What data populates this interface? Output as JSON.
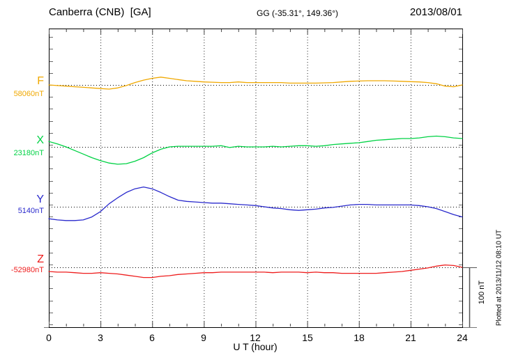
{
  "header": {
    "station": "Canberra (CNB)  [GA]",
    "coordinates": "GG (-35.31°, 149.36°)",
    "date": "2013/08/01"
  },
  "axes": {
    "x_label": "U T (hour)",
    "x_tick_labels": [
      "0",
      "3",
      "6",
      "9",
      "12",
      "15",
      "18",
      "21",
      "24"
    ]
  },
  "scale_bar": {
    "label": "100 nT"
  },
  "footer_note": "Plotted at 2013/11/12 08:10 UT",
  "chart_data": {
    "type": "line",
    "title": "Canberra (CNB) [GA] magnetogram for 2013/08/01",
    "xlabel": "U T (hour)",
    "x_range": [
      0,
      24
    ],
    "x_ticks": [
      0,
      3,
      6,
      9,
      12,
      15,
      18,
      21,
      24
    ],
    "x_minor_tick_step_hours": 1,
    "y_tick_step_nT": 20,
    "scale_bar_nT": 100,
    "x_step_hours": 0.5,
    "grid": "dotted vertical lines every 3 h; dotted horizontal line at each series baseline",
    "legend_position": "left",
    "series": [
      {
        "name": "F",
        "baseline_label": "58060nT",
        "baseline_nT": 58060,
        "color": "#f0a800",
        "offsets_nT": [
          0,
          -1,
          -2,
          -3,
          -4,
          -5,
          -6,
          -7,
          -5,
          -1,
          4,
          8,
          11,
          13,
          11,
          9,
          7,
          6,
          5,
          4.5,
          4,
          4,
          5,
          4,
          4,
          4,
          4,
          4,
          3,
          3,
          3,
          3,
          3.5,
          4,
          5,
          6,
          6.5,
          7,
          7,
          7,
          6.5,
          6,
          5.5,
          5,
          4,
          2,
          -2,
          -3,
          0
        ]
      },
      {
        "name": "X",
        "baseline_label": "23180nT",
        "baseline_nT": 23180,
        "color": "#00d244",
        "offsets_nT": [
          9,
          5,
          0,
          -6,
          -12,
          -18,
          -23,
          -27,
          -29,
          -28,
          -24,
          -18,
          -10,
          -4,
          0,
          1,
          1,
          1,
          1,
          1,
          2,
          -1,
          1,
          0,
          0,
          0,
          1,
          0,
          1,
          2,
          2,
          1,
          2,
          4,
          5,
          6,
          7,
          9,
          11,
          12,
          13,
          14,
          14,
          15,
          17,
          18,
          17,
          15,
          14
        ]
      },
      {
        "name": "Y",
        "baseline_label": "5140nT",
        "baseline_nT": 5140,
        "color": "#2929cc",
        "offsets_nT": [
          -20,
          -22,
          -23,
          -23,
          -22,
          -17,
          -8,
          5,
          15,
          24,
          30,
          33,
          30,
          24,
          17,
          11,
          9,
          8,
          7,
          6,
          6,
          5,
          4,
          3,
          2,
          0,
          -2,
          -3,
          -5,
          -6,
          -5,
          -4,
          -2,
          -1,
          1,
          3,
          4,
          4,
          3,
          3,
          3,
          3,
          3,
          2,
          0,
          -3,
          -8,
          -13,
          -17
        ]
      },
      {
        "name": "Z",
        "baseline_label": "-52980nT",
        "baseline_nT": -52980,
        "color": "#ee1c1c",
        "offsets_nT": [
          -7,
          -8,
          -8,
          -9,
          -10,
          -10,
          -9,
          -10,
          -11,
          -13,
          -15,
          -17,
          -17,
          -15,
          -14,
          -12,
          -11,
          -10,
          -9,
          -9,
          -8,
          -8,
          -8,
          -8,
          -8,
          -8,
          -9,
          -8,
          -8,
          -8,
          -9,
          -8,
          -9,
          -9,
          -10,
          -10,
          -10,
          -10,
          -10,
          -9,
          -8,
          -7,
          -5,
          -3,
          -1,
          2,
          4,
          3,
          0
        ]
      }
    ]
  }
}
